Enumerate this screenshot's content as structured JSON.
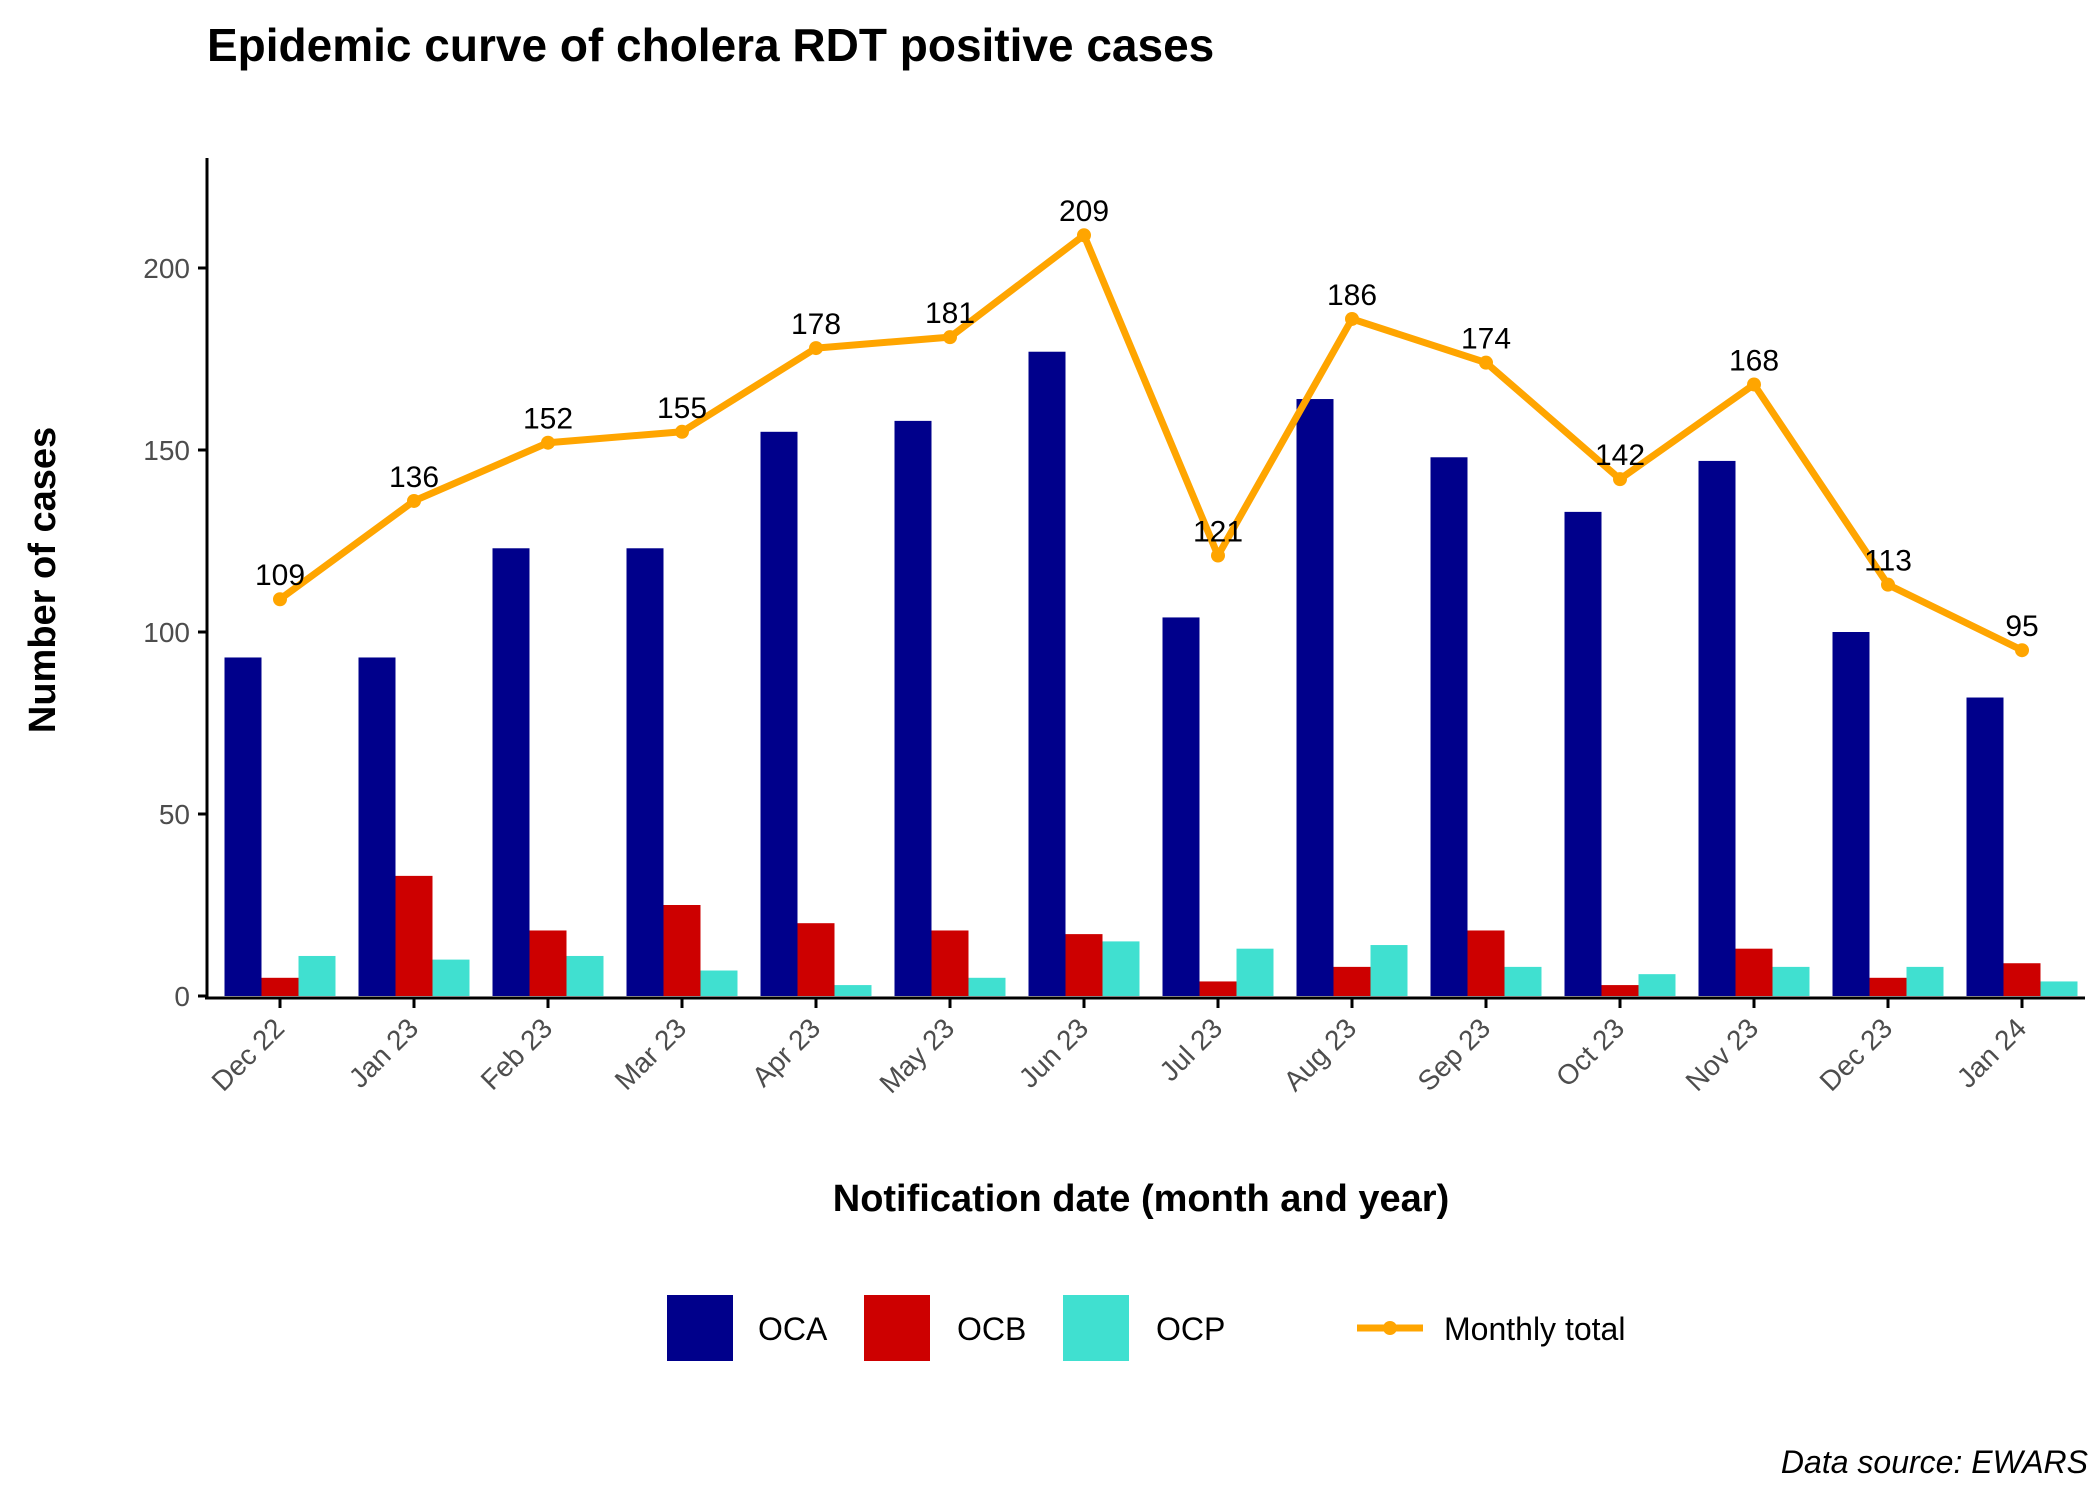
{
  "chart_data": {
    "type": "bar",
    "title": "Epidemic curve of cholera RDT positive cases",
    "xlabel": "Notification date (month and year)",
    "ylabel": "Number of cases",
    "caption": "Data source: EWARS",
    "ylim": [
      0,
      230
    ],
    "yticks": [
      0,
      50,
      100,
      150,
      200
    ],
    "grid": false,
    "legend_position": "bottom",
    "categories": [
      "Dec 22",
      "Jan 23",
      "Feb 23",
      "Mar 23",
      "Apr 23",
      "May 23",
      "Jun 23",
      "Jul 23",
      "Aug 23",
      "Sep 23",
      "Oct 23",
      "Nov 23",
      "Dec 23",
      "Jan 24"
    ],
    "series": [
      {
        "name": "OCA",
        "color": "#00008B",
        "values": [
          93,
          93,
          123,
          123,
          155,
          158,
          177,
          104,
          164,
          148,
          133,
          147,
          100,
          82
        ]
      },
      {
        "name": "OCB",
        "color": "#CD0000",
        "values": [
          5,
          33,
          18,
          25,
          20,
          18,
          17,
          4,
          8,
          18,
          3,
          13,
          5,
          9
        ]
      },
      {
        "name": "OCP",
        "color": "#40E0D0",
        "values": [
          11,
          10,
          11,
          7,
          3,
          5,
          15,
          13,
          14,
          8,
          6,
          8,
          8,
          4
        ]
      }
    ],
    "line": {
      "name": "Monthly total",
      "color": "#FFA500",
      "values": [
        109,
        136,
        152,
        155,
        178,
        181,
        209,
        121,
        186,
        174,
        142,
        168,
        113,
        95
      ]
    }
  }
}
